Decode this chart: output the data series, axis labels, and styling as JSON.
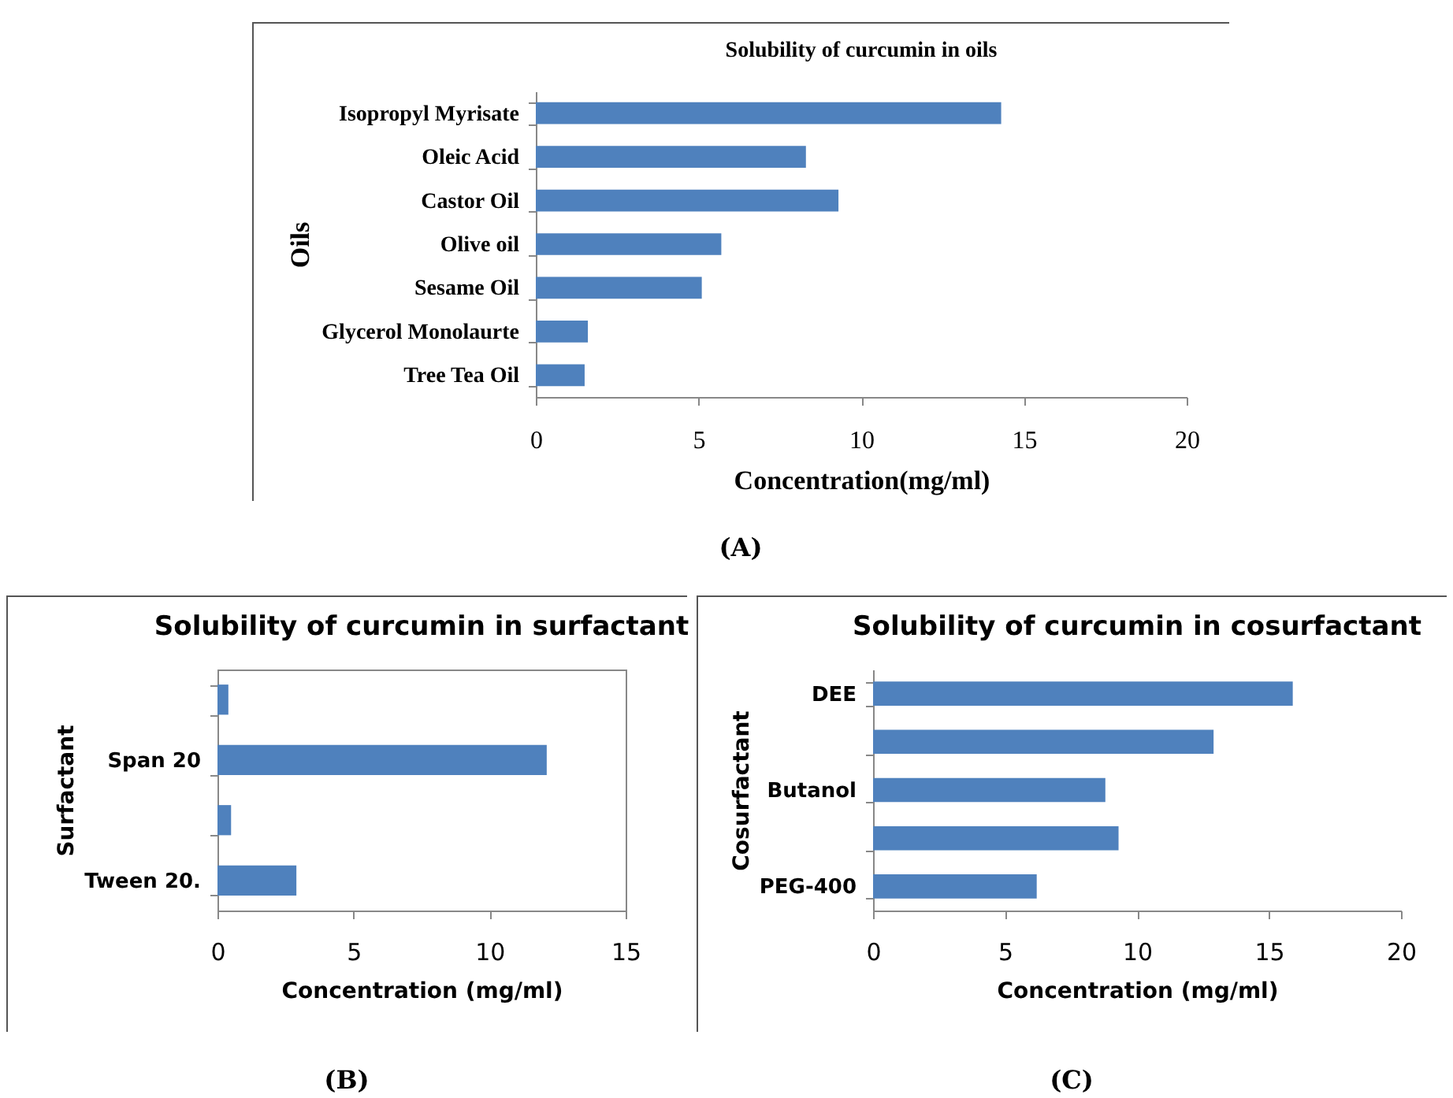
{
  "chart_data": [
    {
      "type": "bar",
      "orientation": "horizontal",
      "title": "Solubility of curcumin in oils",
      "xlabel": "Concentration(mg/ml)",
      "ylabel": "Oils",
      "categories": [
        "Isopropyl Myrisate",
        "Oleic Acid",
        "Castor Oil",
        "Olive oil",
        "Sesame Oil",
        "Glycerol Monolaurte",
        "Tree Tea Oil"
      ],
      "values": [
        14.3,
        8.3,
        9.3,
        5.7,
        5.1,
        1.6,
        1.5
      ],
      "color": "#4f81bd",
      "xlim": [
        0,
        20
      ],
      "xticks": [
        0,
        5,
        10,
        15,
        20
      ],
      "annotations": [
        "(A)"
      ]
    },
    {
      "type": "bar",
      "orientation": "horizontal",
      "title": "Solubility of curcumin in surfactant",
      "xlabel": "Concentration  (mg/ml)",
      "ylabel": "Surfactant",
      "categories": [
        null,
        "Span 20",
        null,
        "Tween 20."
      ],
      "values": [
        0.4,
        12.1,
        0.5,
        2.9
      ],
      "color": "#4f81bd",
      "xlim": [
        0,
        15
      ],
      "xticks": [
        0,
        5,
        10,
        15
      ],
      "annotations": [
        "(B)"
      ]
    },
    {
      "type": "bar",
      "orientation": "horizontal",
      "title": "Solubility of curcumin in cosurfactant",
      "xlabel": "Concentration  (mg/ml)",
      "ylabel": "Cosurfactant",
      "categories": [
        "DEE",
        null,
        "Butanol",
        null,
        "PEG-400"
      ],
      "values": [
        15.9,
        12.9,
        8.8,
        9.3,
        6.2
      ],
      "color": "#4f81bd",
      "xlim": [
        0,
        20
      ],
      "xticks": [
        0,
        5,
        10,
        15,
        20
      ],
      "annotations": [
        "(C)"
      ]
    }
  ]
}
